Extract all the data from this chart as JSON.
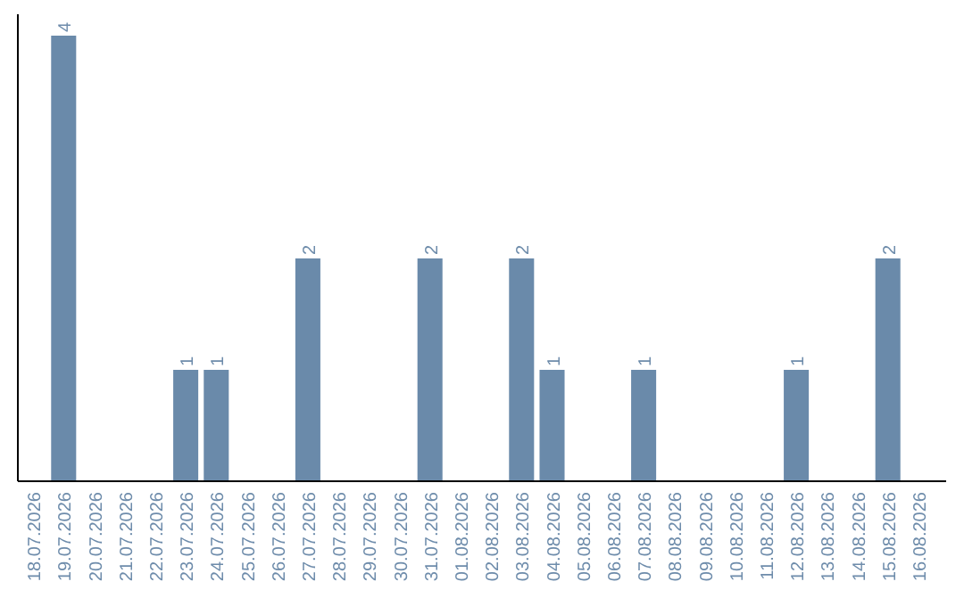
{
  "chart_data": {
    "type": "bar",
    "categories": [
      "18.07.2026",
      "19.07.2026",
      "20.07.2026",
      "21.07.2026",
      "22.07.2026",
      "23.07.2026",
      "24.07.2026",
      "25.07.2026",
      "26.07.2026",
      "27.07.2026",
      "28.07.2026",
      "29.07.2026",
      "30.07.2026",
      "31.07.2026",
      "01.08.2026",
      "02.08.2026",
      "03.08.2026",
      "04.08.2026",
      "05.08.2026",
      "06.08.2026",
      "07.08.2026",
      "08.08.2026",
      "09.08.2026",
      "10.08.2026",
      "11.08.2026",
      "12.08.2026",
      "13.08.2026",
      "14.08.2026",
      "15.08.2026",
      "16.08.2026"
    ],
    "values": [
      0,
      4,
      0,
      0,
      0,
      1,
      1,
      0,
      0,
      2,
      0,
      0,
      0,
      2,
      0,
      0,
      2,
      1,
      0,
      0,
      1,
      0,
      0,
      0,
      0,
      1,
      0,
      0,
      2,
      0
    ],
    "value_labels": [
      null,
      "4",
      null,
      null,
      null,
      "1",
      "1",
      null,
      null,
      "2",
      null,
      null,
      null,
      "2",
      null,
      null,
      "2",
      "1",
      null,
      null,
      "1",
      null,
      null,
      null,
      null,
      "1",
      null,
      null,
      "2",
      null
    ],
    "color": "#6a8aaa"
  }
}
